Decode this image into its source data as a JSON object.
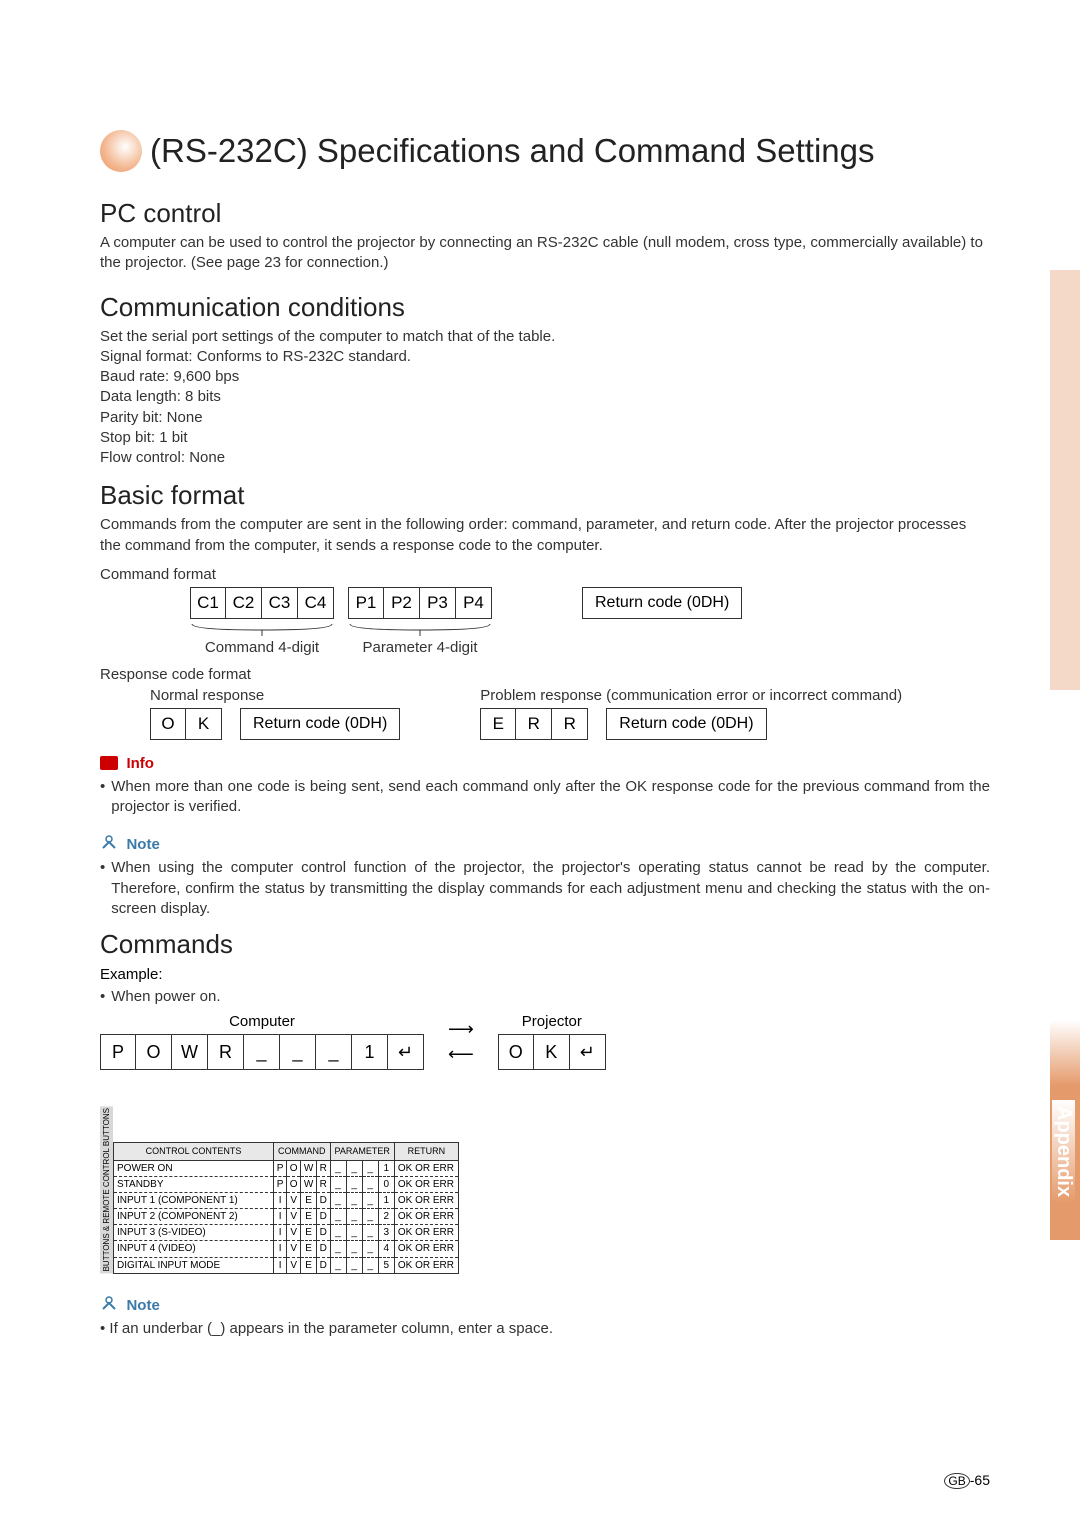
{
  "title": "(RS-232C) Specifications and Command Settings",
  "sections": {
    "pc_control": {
      "heading": "PC control",
      "body": "A computer can be used to control the projector by connecting an RS-232C cable (null modem, cross type, commercially available) to the projector. (See page 23 for connection.)"
    },
    "comm_cond": {
      "heading": "Communication conditions",
      "intro": "Set the serial port settings of the computer to match that of the table.",
      "specs": [
        "Signal format: Conforms to RS-232C standard.",
        "Baud rate: 9,600 bps",
        "Data length: 8 bits",
        "Parity bit: None",
        "Stop bit: 1 bit",
        "Flow control: None"
      ]
    },
    "basic_format": {
      "heading": "Basic format",
      "body": "Commands from the computer are sent in the following order: command, parameter, and return code. After the projector processes the command from the computer, it sends a response code to the computer.",
      "command_format_label": "Command format",
      "cells_cmd": [
        "C1",
        "C2",
        "C3",
        "C4",
        "P1",
        "P2",
        "P3",
        "P4"
      ],
      "return_code_label": "Return code (0DH)",
      "sub_cmd": "Command 4-digit",
      "sub_param": "Parameter 4-digit",
      "response_format_label": "Response code format",
      "normal_response_label": "Normal response",
      "problem_response_label": "Problem response (communication error or incorrect command)",
      "ok_cells": [
        "O",
        "K"
      ],
      "err_cells": [
        "E",
        "R",
        "R"
      ]
    },
    "info": {
      "label": "Info",
      "text": "When more than one code is being sent, send each command only after the OK response code for the previous command from the projector is verified."
    },
    "note1": {
      "label": "Note",
      "text": "When using the computer control function of the projector, the projector's operating status cannot be read by the computer. Therefore, confirm the status by transmitting the display commands for each adjustment menu and checking the status with the on-screen display."
    },
    "commands": {
      "heading": "Commands",
      "example_label": "Example:",
      "example_sub": "When power on.",
      "computer_label": "Computer",
      "projector_label": "Projector",
      "computer_cells": [
        "P",
        "O",
        "W",
        "R",
        "_",
        "_",
        "_",
        "1",
        "↵"
      ],
      "projector_cells": [
        "O",
        "K",
        "↵"
      ]
    },
    "table": {
      "side_label": "BUTTONS & REMOTE CONTROL BUTTONS",
      "headers": [
        "CONTROL CONTENTS",
        "COMMAND",
        "PARAMETER",
        "RETURN"
      ],
      "rows": [
        {
          "label": "POWER ON",
          "cmd": [
            "P",
            "O",
            "W",
            "R"
          ],
          "param": [
            "_",
            "_",
            "_",
            "1"
          ],
          "ret": "OK OR ERR"
        },
        {
          "label": "STANDBY",
          "cmd": [
            "P",
            "O",
            "W",
            "R"
          ],
          "param": [
            "_",
            "_",
            "_",
            "0"
          ],
          "ret": "OK OR ERR"
        },
        {
          "label": "INPUT 1 (COMPONENT 1)",
          "cmd": [
            "I",
            "V",
            "E",
            "D"
          ],
          "param": [
            "_",
            "_",
            "_",
            "1"
          ],
          "ret": "OK OR ERR"
        },
        {
          "label": "INPUT 2 (COMPONENT 2)",
          "cmd": [
            "I",
            "V",
            "E",
            "D"
          ],
          "param": [
            "_",
            "_",
            "_",
            "2"
          ],
          "ret": "OK OR ERR"
        },
        {
          "label": "INPUT 3 (S-VIDEO)",
          "cmd": [
            "I",
            "V",
            "E",
            "D"
          ],
          "param": [
            "_",
            "_",
            "_",
            "3"
          ],
          "ret": "OK OR ERR"
        },
        {
          "label": "INPUT 4 (VIDEO)",
          "cmd": [
            "I",
            "V",
            "E",
            "D"
          ],
          "param": [
            "_",
            "_",
            "_",
            "4"
          ],
          "ret": "OK OR ERR"
        },
        {
          "label": "DIGITAL INPUT MODE",
          "cmd": [
            "I",
            "V",
            "E",
            "D"
          ],
          "param": [
            "_",
            "_",
            "_",
            "5"
          ],
          "ret": "OK OR ERR"
        }
      ]
    },
    "note2": {
      "label": "Note",
      "text": "If an underbar (_)  appears in the parameter column, enter a space."
    }
  },
  "appendix_label": "Appendix",
  "page_number": "-65",
  "page_prefix": "GB",
  "colors": {
    "accent": "#e8945f",
    "info_red": "#c00",
    "note_blue": "#3a7aa8",
    "side_peach": "#f5d9c8"
  }
}
